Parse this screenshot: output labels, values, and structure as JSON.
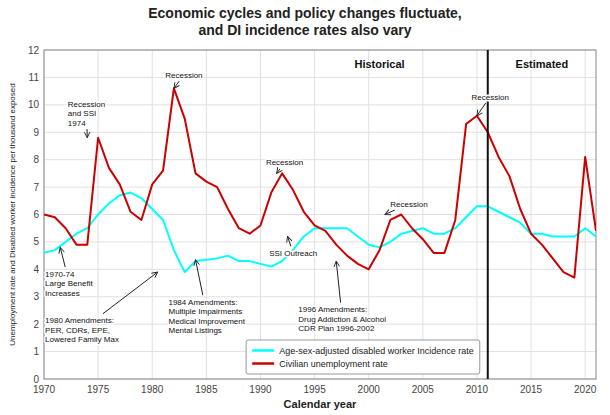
{
  "chart_data": {
    "type": "line",
    "title": "Economic cycles and policy changes fluctuate,\nand DI incidence rates also vary",
    "x_label": "Calendar year",
    "y_label": "Unemployment rate and Disabled worker incidence per thousand exposed",
    "x": [
      1970,
      1971,
      1972,
      1973,
      1974,
      1975,
      1976,
      1977,
      1978,
      1979,
      1980,
      1981,
      1982,
      1983,
      1984,
      1985,
      1986,
      1987,
      1988,
      1989,
      1990,
      1991,
      1992,
      1993,
      1994,
      1995,
      1996,
      1997,
      1998,
      1999,
      2000,
      2001,
      2002,
      2003,
      2004,
      2005,
      2006,
      2007,
      2008,
      2009,
      2010,
      2011,
      2012,
      2013,
      2014,
      2015,
      2016,
      2017,
      2018,
      2019,
      2020,
      2021
    ],
    "series": [
      {
        "name": "Age-sex-adjusted disabled worker Incidence rate",
        "color": "#00FFFF",
        "values": [
          4.6,
          4.7,
          5.0,
          5.3,
          5.5,
          6.0,
          6.4,
          6.7,
          6.8,
          6.6,
          6.2,
          5.8,
          4.7,
          3.9,
          4.3,
          4.35,
          4.4,
          4.5,
          4.3,
          4.3,
          4.2,
          4.1,
          4.3,
          4.7,
          5.2,
          5.5,
          5.5,
          5.5,
          5.5,
          5.2,
          4.9,
          4.8,
          5.0,
          5.3,
          5.4,
          5.5,
          5.3,
          5.3,
          5.5,
          5.9,
          6.3,
          6.3,
          6.1,
          5.9,
          5.7,
          5.3,
          5.3,
          5.2,
          5.2,
          5.2,
          5.5,
          5.2
        ]
      },
      {
        "name": "Civilian unemployment rate",
        "color": "#CC0000",
        "values": [
          6.0,
          5.9,
          5.5,
          4.9,
          4.9,
          8.8,
          7.7,
          7.1,
          6.1,
          5.8,
          7.1,
          7.6,
          10.6,
          9.5,
          7.5,
          7.2,
          7.0,
          6.2,
          5.5,
          5.3,
          5.6,
          6.8,
          7.5,
          6.9,
          6.1,
          5.6,
          5.4,
          4.9,
          4.5,
          4.2,
          4.0,
          4.7,
          5.8,
          6.0,
          5.5,
          5.1,
          4.6,
          4.6,
          5.8,
          9.3,
          9.6,
          9.0,
          8.1,
          7.4,
          6.2,
          5.3,
          4.9,
          4.4,
          3.9,
          3.7,
          8.1,
          5.4
        ]
      }
    ],
    "xlim": [
      1970,
      2021
    ],
    "ylim": [
      0,
      12
    ],
    "xticks": [
      1970,
      1975,
      1980,
      1985,
      1990,
      1995,
      2000,
      2005,
      2010,
      2015,
      2020
    ],
    "yticks": [
      0,
      1,
      2,
      3,
      4,
      5,
      6,
      7,
      8,
      9,
      10,
      11,
      12
    ],
    "grid": true,
    "legend": "lower right",
    "vertical_lines": [
      2011
    ],
    "annotations": [
      {
        "text": "Recession\nand SSI\n1974",
        "x": 1974,
        "y": 8.8,
        "text_x": 1972.2,
        "text_y": 9.7
      },
      {
        "text": "1970-74\nLarge Benefit\nIncreases",
        "x": 1971.5,
        "y": 4.8,
        "text_x": 1970.1,
        "text_y": 3.5
      },
      {
        "text": "1980 Amendments:\nPER, CDRs, EPE,\nLowered Family Max",
        "x": 1980.5,
        "y": 3.9,
        "text_x": 1970.1,
        "text_y": 1.8
      },
      {
        "text": "Recession",
        "x": 1982,
        "y": 10.6,
        "text_x": 1981.2,
        "text_y": 11.1
      },
      {
        "text": "1984 Amendments:\nMultiple Impairments\nMedical Improvement\nMental Listings",
        "x": 1984,
        "y": 4.35,
        "text_x": 1981.5,
        "text_y": 2.3
      },
      {
        "text": "Recession",
        "x": 1991.5,
        "y": 7.5,
        "text_x": 1990.5,
        "text_y": 7.9
      },
      {
        "text": "SSI Outreach",
        "x": 1992.5,
        "y": 5.2,
        "text_x": 1990.8,
        "text_y": 4.6
      },
      {
        "text": "1996 Amendments:\nDrug Addiction & Alcohol\nCDR Plan 1996-2002",
        "x": 1997,
        "y": 4.3,
        "text_x": 1993.5,
        "text_y": 2.2
      },
      {
        "text": "Recession",
        "x": 2001.5,
        "y": 6.0,
        "text_x": 2002.0,
        "text_y": 6.4
      },
      {
        "text": "Recession",
        "x": 2010,
        "y": 9.6,
        "text_x": 2009.5,
        "text_y": 10.3
      },
      {
        "text": "Historical",
        "x": 2001,
        "y": 11.5
      },
      {
        "text": "Estimated",
        "x": 2016,
        "y": 11.5
      }
    ]
  }
}
